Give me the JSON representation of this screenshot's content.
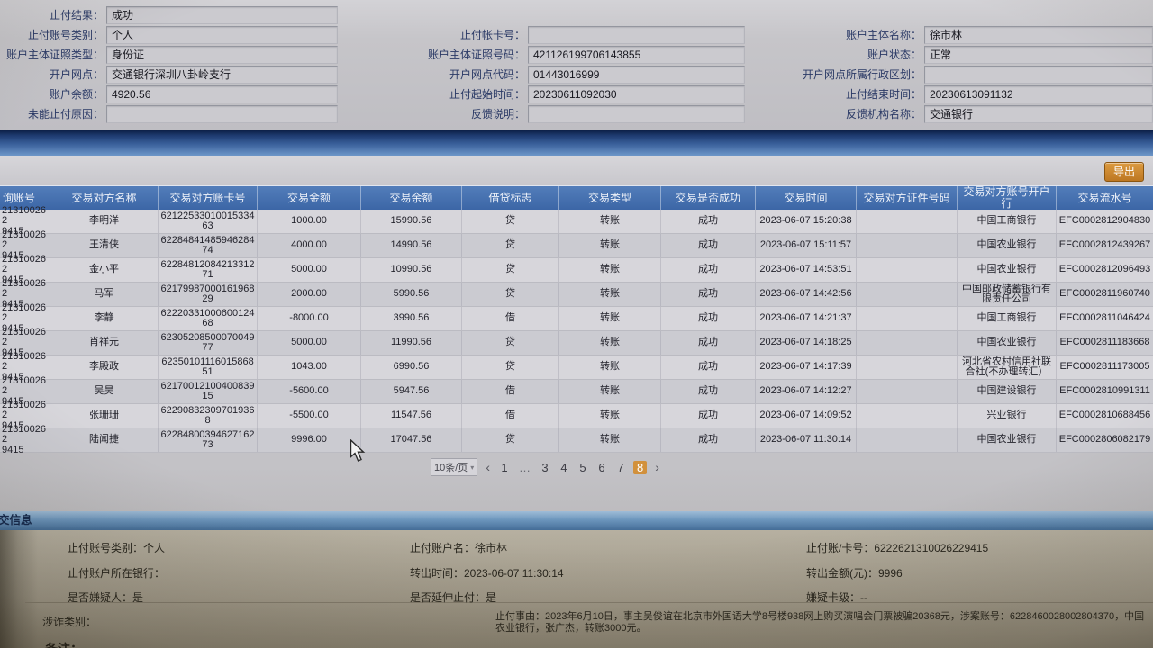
{
  "colors": {
    "table_header_blue": "#3c66a6",
    "band_blue_dark": "#0d1f47",
    "export_orange": "#bd7722",
    "active_page_orange": "#d2913c",
    "panel_tan": "#b0a999"
  },
  "top_form": {
    "rows": [
      {
        "cells": [
          {
            "col": 0,
            "label": "止付结果：",
            "value": "成功"
          }
        ]
      },
      {
        "cells": [
          {
            "col": 0,
            "label": "止付账号类别：",
            "value": "个人"
          },
          {
            "col": 1,
            "label": "止付帐卡号：",
            "value": ""
          },
          {
            "col": 2,
            "label": "账户主体名称：",
            "value": "徐市林"
          }
        ]
      },
      {
        "cells": [
          {
            "col": 0,
            "label": "账户主体证照类型：",
            "value": "身份证"
          },
          {
            "col": 1,
            "label": "账户主体证照号码：",
            "value": "421126199706143855"
          },
          {
            "col": 2,
            "label": "账户状态：",
            "value": "正常"
          }
        ]
      },
      {
        "cells": [
          {
            "col": 0,
            "label": "开户网点：",
            "value": "交通银行深圳八卦岭支行"
          },
          {
            "col": 1,
            "label": "开户网点代码：",
            "value": "01443016999"
          },
          {
            "col": 2,
            "label": "开户网点所属行政区划：",
            "value": ""
          }
        ]
      },
      {
        "cells": [
          {
            "col": 0,
            "label": "账户余额：",
            "value": "4920.56"
          },
          {
            "col": 1,
            "label": "止付起始时间：",
            "value": "20230611092030"
          },
          {
            "col": 2,
            "label": "止付结束时间：",
            "value": "20230613091132"
          }
        ]
      },
      {
        "cells": [
          {
            "col": 0,
            "label": "未能止付原因：",
            "value": ""
          },
          {
            "col": 1,
            "label": "反馈说明：",
            "value": ""
          },
          {
            "col": 2,
            "label": "反馈机构名称：",
            "value": "交通银行"
          }
        ]
      }
    ]
  },
  "toolbar": {
    "export_label": "导出"
  },
  "transactions_table": {
    "columns": [
      "询账号",
      "交易对方名称",
      "交易对方账卡号",
      "交易金额",
      "交易余额",
      "借贷标志",
      "交易类型",
      "交易是否成功",
      "交易时间",
      "交易对方证件号码",
      "交易对方账号开户行",
      "交易流水号"
    ],
    "rows": [
      [
        "213100262\n9415",
        "李明洋",
        "6212253301001533463",
        "1000.00",
        "15990.56",
        "贷",
        "转账",
        "成功",
        "2023-06-07 15:20:38",
        "",
        "中国工商银行",
        "EFC0002812904830"
      ],
      [
        "213100262\n9415",
        "王清侠",
        "6228484148594628474",
        "4000.00",
        "14990.56",
        "贷",
        "转账",
        "成功",
        "2023-06-07 15:11:57",
        "",
        "中国农业银行",
        "EFC0002812439267"
      ],
      [
        "213100262\n9415",
        "金小平",
        "6228481208421331271",
        "5000.00",
        "10990.56",
        "贷",
        "转账",
        "成功",
        "2023-06-07 14:53:51",
        "",
        "中国农业银行",
        "EFC0002812096493"
      ],
      [
        "213100262\n9415",
        "马军",
        "6217998700016196829",
        "2000.00",
        "5990.56",
        "贷",
        "转账",
        "成功",
        "2023-06-07 14:42:56",
        "",
        "中国邮政储蓄银行有限责任公司",
        "EFC0002811960740"
      ],
      [
        "213100262\n9415",
        "李静",
        "6222033100060012468",
        "-8000.00",
        "3990.56",
        "借",
        "转账",
        "成功",
        "2023-06-07 14:21:37",
        "",
        "中国工商银行",
        "EFC0002811046424"
      ],
      [
        "213100262\n9415",
        "肖祥元",
        "6230520850007004977",
        "5000.00",
        "11990.56",
        "贷",
        "转账",
        "成功",
        "2023-06-07 14:18:25",
        "",
        "中国农业银行",
        "EFC0002811183668"
      ],
      [
        "213100262\n9415",
        "李殿政",
        "6235010111601586851",
        "1043.00",
        "6990.56",
        "贷",
        "转账",
        "成功",
        "2023-06-07 14:17:39",
        "",
        "河北省农村信用社联合社(不办理转汇）",
        "EFC0002811173005"
      ],
      [
        "213100262\n9415",
        "吴昊",
        "6217001210040083915",
        "-5600.00",
        "5947.56",
        "借",
        "转账",
        "成功",
        "2023-06-07 14:12:27",
        "",
        "中国建设银行",
        "EFC0002810991311"
      ],
      [
        "213100262\n9415",
        "张珊珊",
        "622908323097019368",
        "-5500.00",
        "11547.56",
        "借",
        "转账",
        "成功",
        "2023-06-07 14:09:52",
        "",
        "兴业银行",
        "EFC0002810688456"
      ],
      [
        "213100262\n9415",
        "陆闻捷",
        "6228480039462716273",
        "9996.00",
        "17047.56",
        "贷",
        "转账",
        "成功",
        "2023-06-07 11:30:14",
        "",
        "中国农业银行",
        "EFC0002806082179"
      ]
    ]
  },
  "pagination": {
    "page_size": "10条/页",
    "prev": "‹",
    "pages": [
      "1",
      "…",
      "3",
      "4",
      "5",
      "6",
      "7",
      "8"
    ],
    "active_page": "8",
    "next": "›"
  },
  "detail_panel": {
    "title": "交信息",
    "fields": [
      {
        "label": "止付账号类别：",
        "value": "个人"
      },
      {
        "label": "止付账户名：",
        "value": "徐市林"
      },
      {
        "label": "止付账/卡号：",
        "value": "6222621310026229415"
      },
      {
        "label": "止付账户所在银行：",
        "value": ""
      },
      {
        "label": "转出时间：",
        "value": "2023-06-07 11:30:14"
      },
      {
        "label": "转出金额(元)：",
        "value": "9996"
      },
      {
        "label": "是否嫌疑人：",
        "value": "是"
      },
      {
        "label": "是否延伸止付：",
        "value": "是"
      },
      {
        "label": "嫌疑卡级：",
        "value": "--"
      },
      {
        "label": "涉诈类别：",
        "value": ""
      },
      {
        "label": "止付事由：",
        "value": "2023年6月10日，事主吴俊谊在北京市外国语大学8号楼938网上购买演唱会门票被骗20368元，涉案账号：6228460028002804370，中国农业银行，张广杰，转账3000元。"
      }
    ],
    "footer_partial": "备注："
  }
}
